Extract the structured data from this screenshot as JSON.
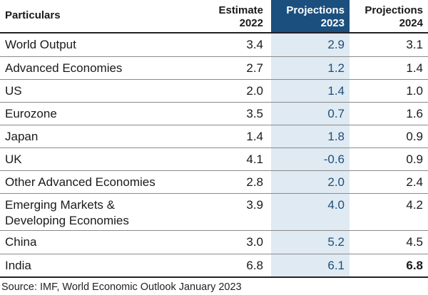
{
  "table": {
    "headers": [
      "Particulars",
      "Estimate\n2022",
      "Projections\n2023",
      "Projections\n2024"
    ],
    "header_lines": {
      "col1": [
        "Estimate",
        "2022"
      ],
      "col2": [
        "Projections",
        "2023"
      ],
      "col3": [
        "Projections",
        "2024"
      ]
    },
    "rows": [
      {
        "label": "World Output",
        "e2022": "3.4",
        "p2023": "2.9",
        "p2024": "3.1"
      },
      {
        "label": "Advanced Economies",
        "e2022": "2.7",
        "p2023": "1.2",
        "p2024": "1.4"
      },
      {
        "label": "US",
        "e2022": "2.0",
        "p2023": "1.4",
        "p2024": "1.0"
      },
      {
        "label": "Eurozone",
        "e2022": "3.5",
        "p2023": "0.7",
        "p2024": "1.6"
      },
      {
        "label": "Japan",
        "e2022": "1.4",
        "p2023": "1.8",
        "p2024": "0.9"
      },
      {
        "label": "UK",
        "e2022": "4.1",
        "p2023": "-0.6",
        "p2024": "0.9"
      },
      {
        "label": "Other Advanced Economies",
        "e2022": "2.8",
        "p2023": "2.0",
        "p2024": "2.4"
      },
      {
        "label": "Emerging Markets & Developing Economies",
        "label_lines": [
          "Emerging Markets &",
          "Developing Economies"
        ],
        "e2022": "3.9",
        "p2023": "4.0",
        "p2024": "4.2"
      },
      {
        "label": "China",
        "e2022": "3.0",
        "p2023": "5.2",
        "p2024": "4.5"
      },
      {
        "label": "India",
        "e2022": "6.8",
        "p2023": "6.1",
        "p2024": "6.8"
      }
    ]
  },
  "source": "Source: IMF, World Economic Outlook January 2023",
  "colors": {
    "header_highlight_bg": "#1b4f7e",
    "column_highlight_bg": "#dfeaf3",
    "column_highlight_text": "#1f4e79"
  }
}
